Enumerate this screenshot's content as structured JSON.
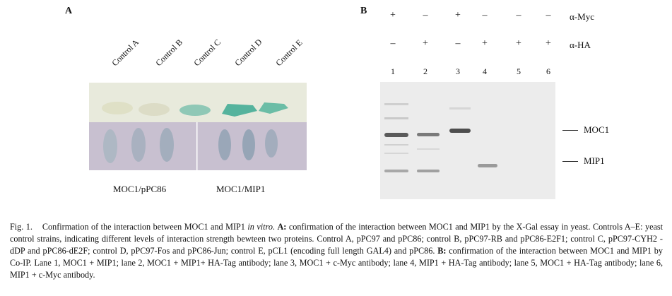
{
  "panel_a": {
    "label": "A",
    "controls": [
      "Control A",
      "Control B",
      "Control C",
      "Control D",
      "Control E"
    ],
    "row_labels": [
      "MOC1/pPC86",
      "MOC1/MIP1"
    ]
  },
  "panel_b": {
    "label": "B",
    "antibodies": [
      {
        "name": "α-Myc",
        "signs": [
          "+",
          "–",
          "+",
          "–",
          "–",
          "–"
        ]
      },
      {
        "name": "α-HA",
        "signs": [
          "–",
          "+",
          "–",
          "+",
          "+",
          "+"
        ]
      }
    ],
    "lanes": [
      "1",
      "2",
      "3",
      "4",
      "5",
      "6"
    ],
    "markers": [
      "MOC1",
      "MIP1"
    ]
  },
  "caption": {
    "fig": "Fig. 1.",
    "title_pre": "Confirmation of the interaction between MOC1 and MIP1 ",
    "title_ital": "in vitro",
    "title_post": ".",
    "a_label": "A:",
    "a_text": "confirmation of the interaction between MOC1 and MIP1 by the X-Gal essay in yeast. Controls A–E: yeast control strains, indicating different levels of interaction strength bewteen two proteins. Control A, pPC97 and pPC86; control B, pPC97-RB and pPC86-E2F1; control C, pPC97-CYH2 -dDP and pPC86-dE2F; control D, pPC97-Fos and pPC86-Jun; control E, pCL1 (encoding full length GAL4) and pPC86.",
    "b_label": "B:",
    "b_text": "confirmation of the interaction between MOC1 and MIP1 by Co-IP. Lane 1, MOC1 + MIP1; lane 2, MOC1 + MIP1+ HA-Tag antibody; lane 3, MOC1 + c-Myc antibody; lane 4, MIP1 + HA-Tag antibody; lane 5, MOC1 + HA-Tag antibody; lane 6, MIP1 + c-Myc antibody."
  }
}
